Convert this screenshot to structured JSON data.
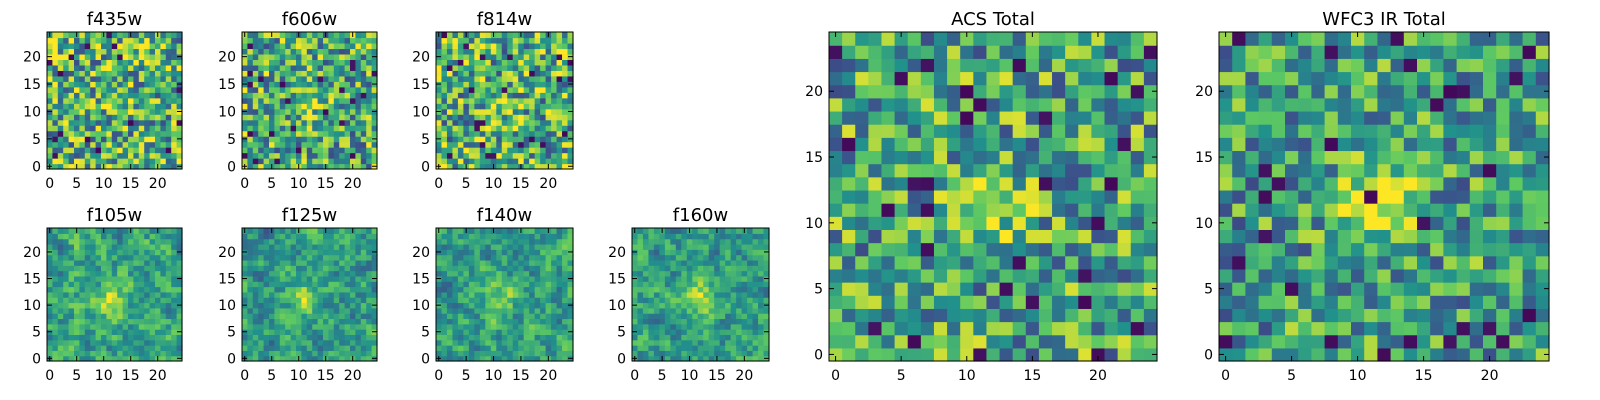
{
  "figure": {
    "colormap": "viridis",
    "colormap_stops": [
      "#440154",
      "#3b528b",
      "#21918c",
      "#5ec962",
      "#fde725"
    ]
  },
  "chart_data": [
    {
      "type": "heatmap",
      "title": "f435w",
      "xlim": [
        0,
        24
      ],
      "ylim": [
        0,
        24
      ],
      "xticks": [
        "0",
        "5",
        "10",
        "15",
        "20"
      ],
      "yticks": [
        "0",
        "5",
        "10",
        "15",
        "20"
      ],
      "grid": false,
      "seed": 11,
      "scale": 1.0,
      "noise": 0.85,
      "peak": 0.05
    },
    {
      "type": "heatmap",
      "title": "f606w",
      "xlim": [
        0,
        24
      ],
      "ylim": [
        0,
        24
      ],
      "xticks": [
        "0",
        "5",
        "10",
        "15",
        "20"
      ],
      "yticks": [
        "0",
        "5",
        "10",
        "15",
        "20"
      ],
      "grid": false,
      "seed": 23,
      "scale": 1.0,
      "noise": 0.8,
      "peak": 0.25
    },
    {
      "type": "heatmap",
      "title": "f814w",
      "xlim": [
        0,
        24
      ],
      "ylim": [
        0,
        24
      ],
      "xticks": [
        "0",
        "5",
        "10",
        "15",
        "20"
      ],
      "yticks": [
        "0",
        "5",
        "10",
        "15",
        "20"
      ],
      "grid": false,
      "seed": 37,
      "scale": 1.0,
      "noise": 0.85,
      "peak": 0.1
    },
    {
      "type": "heatmap",
      "title": "f105w",
      "xlim": [
        0,
        24
      ],
      "ylim": [
        0,
        24
      ],
      "xticks": [
        "0",
        "5",
        "10",
        "15",
        "20"
      ],
      "yticks": [
        "0",
        "5",
        "10",
        "15",
        "20"
      ],
      "grid": false,
      "seed": 41,
      "scale": 2.0,
      "noise": 0.75,
      "peak": 0.25
    },
    {
      "type": "heatmap",
      "title": "f125w",
      "xlim": [
        0,
        24
      ],
      "ylim": [
        0,
        24
      ],
      "xticks": [
        "0",
        "5",
        "10",
        "15",
        "20"
      ],
      "yticks": [
        "0",
        "5",
        "10",
        "15",
        "20"
      ],
      "grid": false,
      "seed": 53,
      "scale": 2.0,
      "noise": 0.7,
      "peak": 0.35
    },
    {
      "type": "heatmap",
      "title": "f140w",
      "xlim": [
        0,
        24
      ],
      "ylim": [
        0,
        24
      ],
      "xticks": [
        "0",
        "5",
        "10",
        "15",
        "20"
      ],
      "yticks": [
        "0",
        "5",
        "10",
        "15",
        "20"
      ],
      "grid": false,
      "seed": 67,
      "scale": 2.0,
      "noise": 0.7,
      "peak": 0.3
    },
    {
      "type": "heatmap",
      "title": "f160w",
      "xlim": [
        0,
        24
      ],
      "ylim": [
        0,
        24
      ],
      "xticks": [
        "0",
        "5",
        "10",
        "15",
        "20"
      ],
      "yticks": [
        "0",
        "5",
        "10",
        "15",
        "20"
      ],
      "grid": false,
      "seed": 79,
      "scale": 2.0,
      "noise": 0.7,
      "peak": 0.4
    },
    {
      "type": "heatmap",
      "title": "ACS Total",
      "xlim": [
        0,
        24
      ],
      "ylim": [
        0,
        24
      ],
      "xticks": [
        "0",
        "10",
        "20"
      ],
      "xticks_minor": [
        "5",
        "15"
      ],
      "yticks": [
        "0",
        "5",
        "10",
        "15",
        "20"
      ],
      "grid": false,
      "seed": 97,
      "scale": 1.0,
      "noise": 0.75,
      "peak": 0.35
    },
    {
      "type": "heatmap",
      "title": "WFC3 IR Total",
      "xlim": [
        0,
        24
      ],
      "ylim": [
        0,
        24
      ],
      "xticks": [
        "0",
        "10",
        "20"
      ],
      "xticks_minor": [
        "5",
        "15"
      ],
      "yticks": [
        "0",
        "5",
        "10",
        "15",
        "20"
      ],
      "grid": false,
      "seed": 113,
      "scale": 1.0,
      "noise": 0.7,
      "peak": 0.55
    }
  ]
}
